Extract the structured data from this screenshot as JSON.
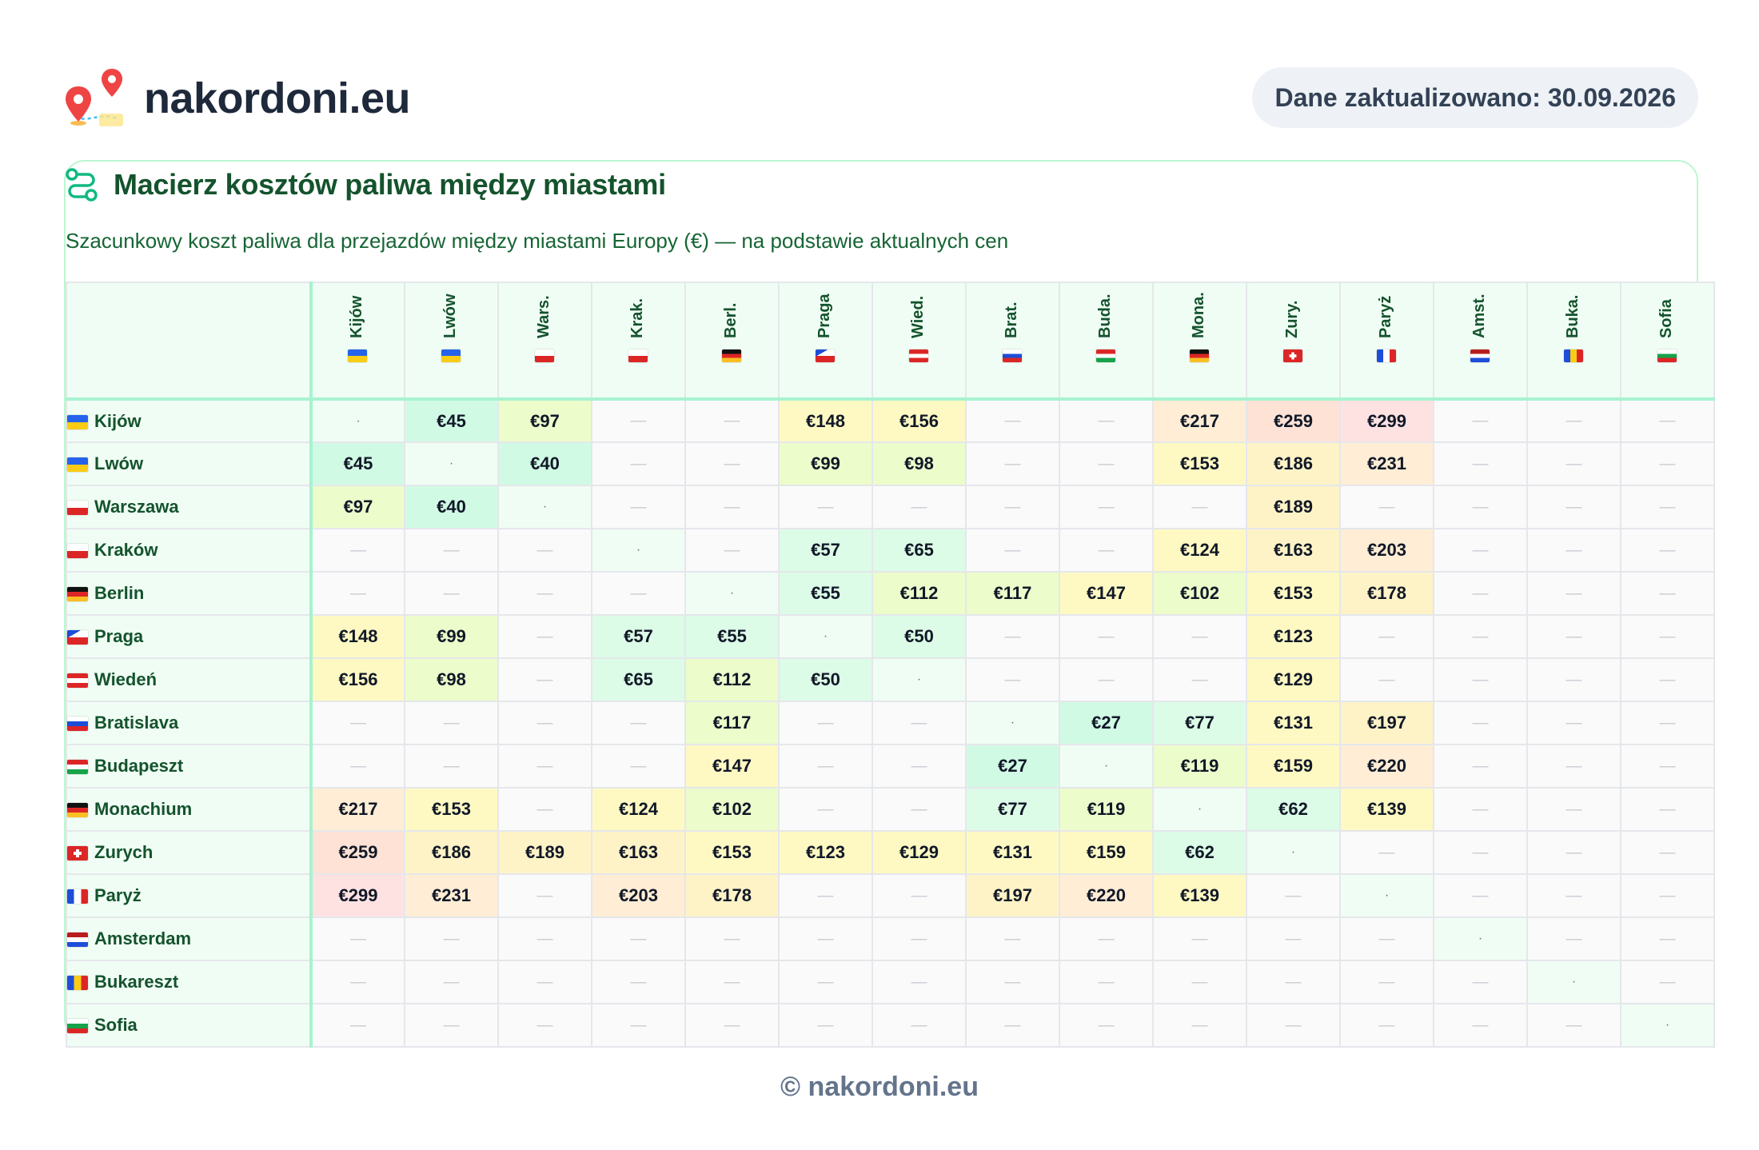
{
  "brand": {
    "name": "nakordoni.eu"
  },
  "updated": {
    "label": "Dane zaktualizowano: 30.09.2026"
  },
  "card": {
    "title": "Macierz kosztów paliwa między miastami",
    "subtitle": "Szacunkowy koszt paliwa dla przejazdów między miastami Europy (€) — na podstawie aktualnych cen"
  },
  "matrix": {
    "empty_symbol": "—",
    "self_symbol": "·",
    "columns": [
      {
        "label": "Kijów",
        "flag": "ua"
      },
      {
        "label": "Lwów",
        "flag": "ua"
      },
      {
        "label": "Wars.",
        "flag": "pl"
      },
      {
        "label": "Krak.",
        "flag": "pl"
      },
      {
        "label": "Berl.",
        "flag": "de"
      },
      {
        "label": "Praga",
        "flag": "cz"
      },
      {
        "label": "Wied.",
        "flag": "at"
      },
      {
        "label": "Brat.",
        "flag": "sk"
      },
      {
        "label": "Buda.",
        "flag": "hu"
      },
      {
        "label": "Mona.",
        "flag": "de"
      },
      {
        "label": "Zury.",
        "flag": "ch"
      },
      {
        "label": "Paryż",
        "flag": "fr"
      },
      {
        "label": "Amst.",
        "flag": "nl"
      },
      {
        "label": "Buka.",
        "flag": "ro"
      },
      {
        "label": "Sofia",
        "flag": "bg"
      }
    ],
    "rows": [
      {
        "label": "Kijów",
        "flag": "ua",
        "cells": [
          null,
          45,
          97,
          null,
          null,
          148,
          156,
          null,
          null,
          217,
          259,
          299,
          null,
          null,
          null
        ]
      },
      {
        "label": "Lwów",
        "flag": "ua",
        "cells": [
          45,
          null,
          40,
          null,
          null,
          99,
          98,
          null,
          null,
          153,
          186,
          231,
          null,
          null,
          null
        ]
      },
      {
        "label": "Warszawa",
        "flag": "pl",
        "cells": [
          97,
          40,
          null,
          null,
          null,
          null,
          null,
          null,
          null,
          null,
          189,
          null,
          null,
          null,
          null
        ]
      },
      {
        "label": "Kraków",
        "flag": "pl",
        "cells": [
          null,
          null,
          null,
          null,
          null,
          57,
          65,
          null,
          null,
          124,
          163,
          203,
          null,
          null,
          null
        ]
      },
      {
        "label": "Berlin",
        "flag": "de",
        "cells": [
          null,
          null,
          null,
          null,
          null,
          55,
          112,
          117,
          147,
          102,
          153,
          178,
          null,
          null,
          null
        ]
      },
      {
        "label": "Praga",
        "flag": "cz",
        "cells": [
          148,
          99,
          null,
          57,
          55,
          null,
          50,
          null,
          null,
          null,
          123,
          null,
          null,
          null,
          null
        ]
      },
      {
        "label": "Wiedeń",
        "flag": "at",
        "cells": [
          156,
          98,
          null,
          65,
          112,
          50,
          null,
          null,
          null,
          null,
          129,
          null,
          null,
          null,
          null
        ]
      },
      {
        "label": "Bratislava",
        "flag": "sk",
        "cells": [
          null,
          null,
          null,
          null,
          117,
          null,
          null,
          null,
          27,
          77,
          131,
          197,
          null,
          null,
          null
        ]
      },
      {
        "label": "Budapeszt",
        "flag": "hu",
        "cells": [
          null,
          null,
          null,
          null,
          147,
          null,
          null,
          27,
          null,
          119,
          159,
          220,
          null,
          null,
          null
        ]
      },
      {
        "label": "Monachium",
        "flag": "de",
        "cells": [
          217,
          153,
          null,
          124,
          102,
          null,
          null,
          77,
          119,
          null,
          62,
          139,
          null,
          null,
          null
        ]
      },
      {
        "label": "Zurych",
        "flag": "ch",
        "cells": [
          259,
          186,
          189,
          163,
          153,
          123,
          129,
          131,
          159,
          62,
          null,
          null,
          null,
          null,
          null
        ]
      },
      {
        "label": "Paryż",
        "flag": "fr",
        "cells": [
          299,
          231,
          null,
          203,
          178,
          null,
          null,
          197,
          220,
          139,
          null,
          null,
          null,
          null,
          null
        ]
      },
      {
        "label": "Amsterdam",
        "flag": "nl",
        "cells": [
          null,
          null,
          null,
          null,
          null,
          null,
          null,
          null,
          null,
          null,
          null,
          null,
          null,
          null,
          null
        ]
      },
      {
        "label": "Bukareszt",
        "flag": "ro",
        "cells": [
          null,
          null,
          null,
          null,
          null,
          null,
          null,
          null,
          null,
          null,
          null,
          null,
          null,
          null,
          null
        ]
      },
      {
        "label": "Sofia",
        "flag": "bg",
        "cells": [
          null,
          null,
          null,
          null,
          null,
          null,
          null,
          null,
          null,
          null,
          null,
          null,
          null,
          null,
          null
        ]
      }
    ]
  },
  "footer": {
    "text": "© nakordoni.eu"
  }
}
